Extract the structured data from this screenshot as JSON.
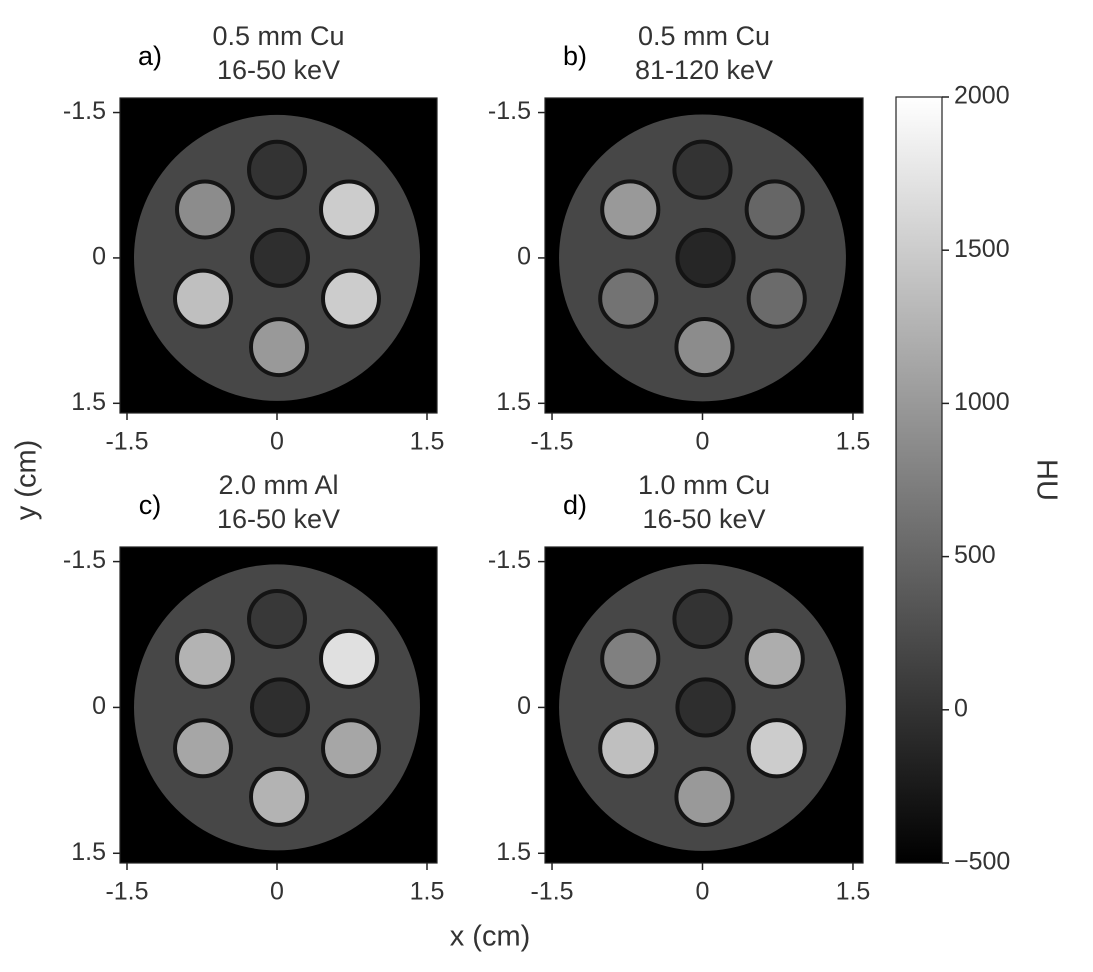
{
  "xlabel": "x (cm)",
  "ylabel": "y (cm)",
  "chart_data": [
    {
      "type": "image",
      "panel_label": "a)",
      "title": [
        "0.5 mm Cu",
        "16-50 keV"
      ],
      "xlim": [
        -1.57,
        1.6
      ],
      "ylim": [
        -1.65,
        1.6
      ],
      "y_inverted": true,
      "xticks": [
        -1.5,
        0,
        1.5
      ],
      "yticks": [
        -1.5,
        0,
        1.5
      ],
      "background": -500,
      "phantom": {
        "x": 0,
        "y": 0,
        "radius": 1.43,
        "value": 200
      },
      "insert_radius": 0.28,
      "inserts": {
        "x": [
          0,
          -0.72,
          0.72,
          -0.74,
          0.74,
          0.02,
          0.03
        ],
        "y": [
          -0.91,
          -0.5,
          -0.5,
          0.42,
          0.42,
          0.92,
          0
        ],
        "values": [
          0,
          875,
          1500,
          1375,
          1500,
          1000,
          -50
        ]
      }
    },
    {
      "type": "image",
      "panel_label": "b)",
      "title": [
        "0.5 mm Cu",
        "81-120 keV"
      ],
      "xlim": [
        -1.57,
        1.6
      ],
      "ylim": [
        -1.65,
        1.6
      ],
      "y_inverted": true,
      "xticks": [
        -1.5,
        0,
        1.5
      ],
      "yticks": [
        -1.5,
        0,
        1.5
      ],
      "background": -500,
      "phantom": {
        "x": 0,
        "y": 0,
        "radius": 1.43,
        "value": 200
      },
      "insert_radius": 0.28,
      "inserts": {
        "x": [
          0,
          -0.72,
          0.72,
          -0.74,
          0.74,
          0.02,
          0.03
        ],
        "y": [
          -0.91,
          -0.5,
          -0.5,
          0.42,
          0.42,
          0.92,
          0
        ],
        "values": [
          0,
          1000,
          500,
          625,
          550,
          875,
          -125
        ]
      }
    },
    {
      "type": "image",
      "panel_label": "c)",
      "title": [
        "2.0 mm Al",
        "16-50 keV"
      ],
      "xlim": [
        -1.57,
        1.6
      ],
      "ylim": [
        -1.65,
        1.6
      ],
      "y_inverted": true,
      "xticks": [
        -1.5,
        0,
        1.5
      ],
      "yticks": [
        -1.5,
        0,
        1.5
      ],
      "background": -500,
      "phantom": {
        "x": 0,
        "y": 0,
        "radius": 1.43,
        "value": 200
      },
      "insert_radius": 0.28,
      "inserts": {
        "x": [
          0,
          -0.72,
          0.72,
          -0.74,
          0.74,
          0.02,
          0.03
        ],
        "y": [
          -0.91,
          -0.5,
          -0.5,
          0.42,
          0.42,
          0.92,
          0
        ],
        "values": [
          50,
          1250,
          1700,
          1125,
          1125,
          1250,
          -50
        ]
      }
    },
    {
      "type": "image",
      "panel_label": "d)",
      "title": [
        "1.0 mm Cu",
        "16-50 keV"
      ],
      "xlim": [
        -1.57,
        1.6
      ],
      "ylim": [
        -1.65,
        1.6
      ],
      "y_inverted": true,
      "xticks": [
        -1.5,
        0,
        1.5
      ],
      "yticks": [
        -1.5,
        0,
        1.5
      ],
      "background": -500,
      "phantom": {
        "x": 0,
        "y": 0,
        "radius": 1.43,
        "value": 200
      },
      "insert_radius": 0.28,
      "inserts": {
        "x": [
          0,
          -0.72,
          0.72,
          -0.74,
          0.74,
          0.02,
          0.03
        ],
        "y": [
          -0.91,
          -0.5,
          -0.5,
          0.42,
          0.42,
          0.92,
          0
        ],
        "values": [
          0,
          750,
          1200,
          1375,
          1500,
          1000,
          -50
        ]
      }
    },
    {
      "type": "colorbar",
      "label": "HU",
      "lim": [
        -500,
        2000
      ],
      "ticks": [
        {
          "value": -500,
          "label": "−500"
        },
        0,
        500,
        1000,
        1500,
        2000
      ]
    }
  ]
}
